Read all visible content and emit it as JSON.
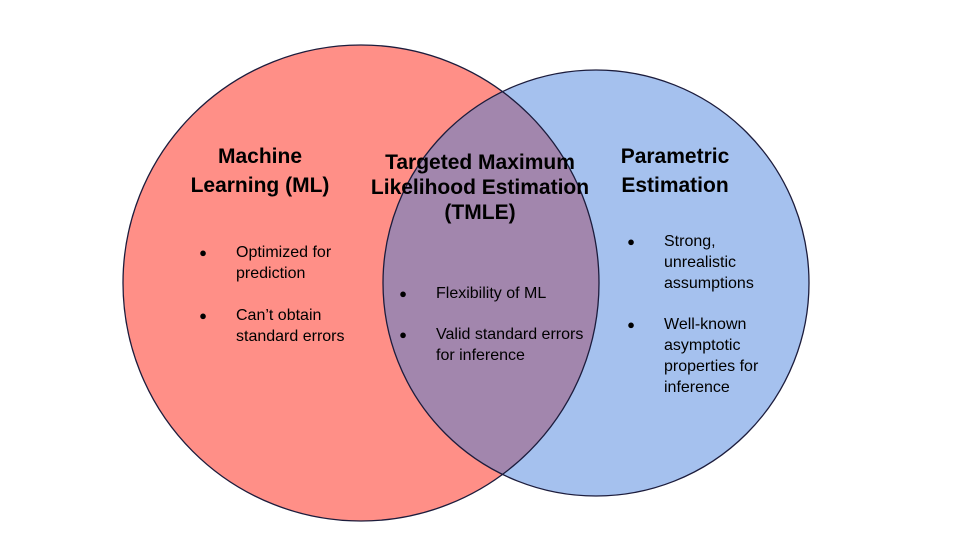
{
  "colors": {
    "left_circle": "#ff8f87",
    "right_circle": "#a5c1ee",
    "overlap": "#a286ad",
    "outline": "#1c1c3c"
  },
  "left": {
    "title": "Machine Learning (ML)",
    "bullets": [
      "Optimized for prediction",
      "Can’t obtain standard errors"
    ]
  },
  "middle": {
    "title": "Targeted Maximum Likelihood Estimation (TMLE)",
    "bullets": [
      "Flexibility of ML",
      "Valid standard errors for inference"
    ]
  },
  "right": {
    "title": "Parametric Estimation",
    "bullets": [
      "Strong, unrealistic assumptions",
      "Well-known asymptotic properties for inference"
    ]
  }
}
